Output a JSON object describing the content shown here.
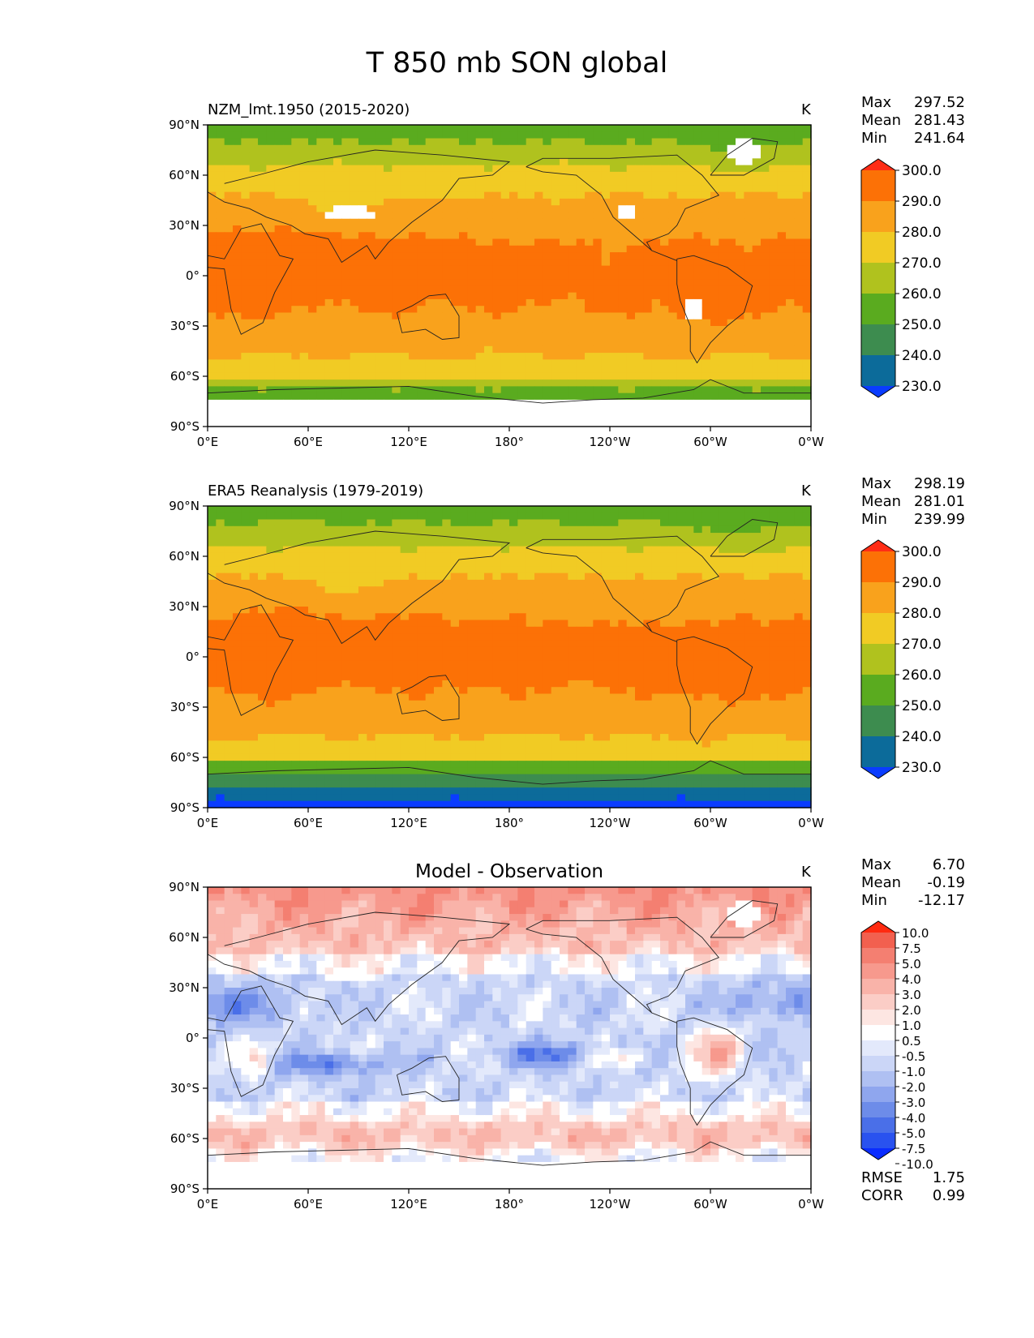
{
  "figure_title": "T 850 mb SON global",
  "chart_data": [
    {
      "type": "heatmap",
      "id": "model",
      "title": "NZM_lmt.1950 (2015-2020)",
      "units": "K",
      "x_ticks": [
        "0°E",
        "60°E",
        "120°E",
        "180°",
        "120°W",
        "60°W",
        "0°W"
      ],
      "y_ticks": [
        "90°N",
        "60°N",
        "30°N",
        "0°",
        "30°S",
        "60°S",
        "90°S"
      ],
      "xlim": [
        0,
        360
      ],
      "ylim": [
        -90,
        90
      ],
      "stats": {
        "max_label": "Max",
        "max": "297.52",
        "mean_label": "Mean",
        "mean": "281.43",
        "min_label": "Min",
        "min": "241.64"
      },
      "colorbar": {
        "levels": [
          230,
          240,
          250,
          260,
          270,
          280,
          290,
          300
        ],
        "tick_labels": [
          "300.0",
          "290.0",
          "280.0",
          "270.0",
          "260.0",
          "250.0",
          "240.0",
          "230.0"
        ],
        "colors": [
          "#0a3cff",
          "#0c6b9a",
          "#3d8c4f",
          "#5aab1f",
          "#b0c21e",
          "#f1cb24",
          "#f9a21c",
          "#fc7106",
          "#ff2d16"
        ]
      }
    },
    {
      "type": "heatmap",
      "id": "obs",
      "title": "ERA5 Reanalysis (1979-2019)",
      "units": "K",
      "x_ticks": [
        "0°E",
        "60°E",
        "120°E",
        "180°",
        "120°W",
        "60°W",
        "0°W"
      ],
      "y_ticks": [
        "90°N",
        "60°N",
        "30°N",
        "0°",
        "30°S",
        "60°S",
        "90°S"
      ],
      "xlim": [
        0,
        360
      ],
      "ylim": [
        -90,
        90
      ],
      "stats": {
        "max_label": "Max",
        "max": "298.19",
        "mean_label": "Mean",
        "mean": "281.01",
        "min_label": "Min",
        "min": "239.99"
      },
      "colorbar": {
        "levels": [
          230,
          240,
          250,
          260,
          270,
          280,
          290,
          300
        ],
        "tick_labels": [
          "300.0",
          "290.0",
          "280.0",
          "270.0",
          "260.0",
          "250.0",
          "240.0",
          "230.0"
        ],
        "colors": [
          "#0a3cff",
          "#0c6b9a",
          "#3d8c4f",
          "#5aab1f",
          "#b0c21e",
          "#f1cb24",
          "#f9a21c",
          "#fc7106",
          "#ff2d16"
        ]
      }
    },
    {
      "type": "heatmap",
      "id": "diff",
      "title": "Model - Observation",
      "units": "K",
      "x_ticks": [
        "0°E",
        "60°E",
        "120°E",
        "180°",
        "120°W",
        "60°W",
        "0°W"
      ],
      "y_ticks": [
        "90°N",
        "60°N",
        "30°N",
        "0°",
        "30°S",
        "60°S",
        "90°S"
      ],
      "xlim": [
        0,
        360
      ],
      "ylim": [
        -90,
        90
      ],
      "stats": {
        "max_label": "Max",
        "max": "6.70",
        "mean_label": "Mean",
        "mean": "-0.19",
        "min_label": "Min",
        "min": "-12.17"
      },
      "metrics": {
        "rmse_label": "RMSE",
        "rmse": "1.75",
        "corr_label": "CORR",
        "corr": "0.99"
      },
      "colorbar": {
        "levels": [
          -10,
          -7.5,
          -5,
          -4,
          -3,
          -2,
          -1,
          -0.5,
          0.5,
          1,
          2,
          3,
          4,
          5,
          7.5,
          10
        ],
        "tick_labels": [
          "10.0",
          "7.5",
          "5.0",
          "4.0",
          "3.0",
          "2.0",
          "1.0",
          "0.5",
          "-0.5",
          "-1.0",
          "-2.0",
          "-3.0",
          "-4.0",
          "-5.0",
          "-7.5",
          "-10.0"
        ],
        "colors": [
          "#0a2cff",
          "#2952ef",
          "#4a6fe8",
          "#6d8ce9",
          "#8fa6ee",
          "#afc0f2",
          "#cbd6f7",
          "#e3e9fb",
          "#ffffff",
          "#fde6e2",
          "#fbcdc6",
          "#f9b3a9",
          "#f7998d",
          "#f47f71",
          "#f2604f",
          "#ff2a10"
        ]
      }
    }
  ]
}
